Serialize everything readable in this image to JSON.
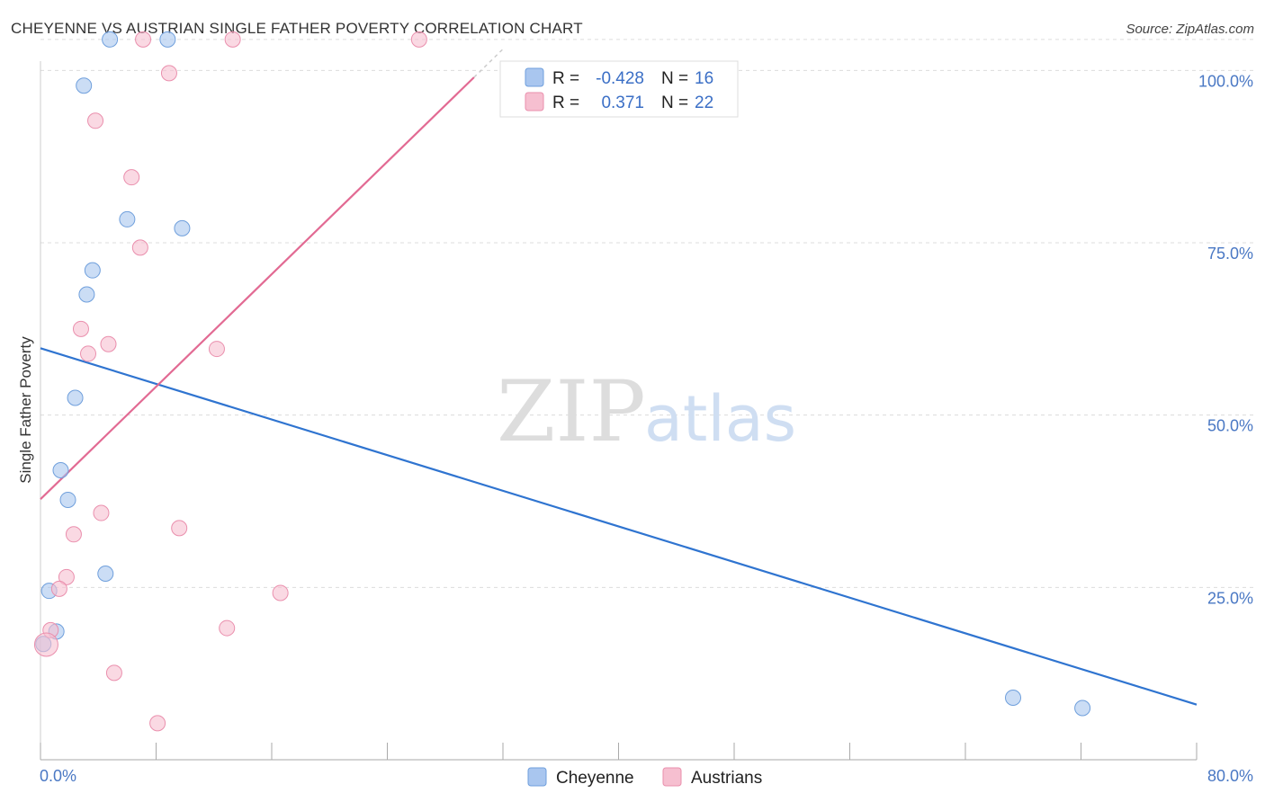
{
  "title": "CHEYENNE VS AUSTRIAN SINGLE FATHER POVERTY CORRELATION CHART",
  "source": "Source: ZipAtlas.com",
  "watermark": {
    "zip": "ZIP",
    "atlas": "atlas"
  },
  "chart_data": {
    "type": "scatter",
    "title": "CHEYENNE VS AUSTRIAN SINGLE FATHER POVERTY CORRELATION CHART",
    "xlabel": "",
    "ylabel": "Single Father Poverty",
    "xlim": [
      0,
      80
    ],
    "ylim": [
      0,
      105
    ],
    "x_tick_labels": [
      "0.0%",
      "80.0%"
    ],
    "y_ticks": [
      25,
      50,
      75,
      100
    ],
    "y_tick_labels": [
      "25.0%",
      "50.0%",
      "75.0%",
      "100.0%"
    ],
    "grid": true,
    "legend_position": "top-center",
    "stats": [
      {
        "series": "Cheyenne",
        "r_label": "R =",
        "r_value": "-0.428",
        "n_label": "N =",
        "n_value": "16"
      },
      {
        "series": "Austrians",
        "r_label": "R =",
        "r_value": "0.371",
        "n_label": "N =",
        "n_value": "22"
      }
    ],
    "series": [
      {
        "name": "Cheyenne",
        "color": "#a9c6ef",
        "stroke": "#6f9fdc",
        "line_color": "#2f74d0",
        "points": [
          {
            "x": 4.8,
            "y": 104.5
          },
          {
            "x": 8.8,
            "y": 104.5
          },
          {
            "x": 3.0,
            "y": 97.8
          },
          {
            "x": 6.0,
            "y": 78.4
          },
          {
            "x": 9.8,
            "y": 77.1
          },
          {
            "x": 3.6,
            "y": 71.0
          },
          {
            "x": 3.2,
            "y": 67.5
          },
          {
            "x": 2.4,
            "y": 52.5
          },
          {
            "x": 1.4,
            "y": 42.0
          },
          {
            "x": 1.9,
            "y": 37.7
          },
          {
            "x": 4.5,
            "y": 27.0
          },
          {
            "x": 0.6,
            "y": 24.5
          },
          {
            "x": 1.1,
            "y": 18.6
          },
          {
            "x": 0.2,
            "y": 16.8
          },
          {
            "x": 67.3,
            "y": 9.0
          },
          {
            "x": 72.1,
            "y": 7.5
          }
        ],
        "trend": {
          "x": [
            0,
            80
          ],
          "y": [
            59.7,
            8.0
          ]
        }
      },
      {
        "name": "Austrians",
        "color": "#f6bfd0",
        "stroke": "#ea8fad",
        "line_color": "#e26a93",
        "points": [
          {
            "x": 7.1,
            "y": 104.5
          },
          {
            "x": 13.3,
            "y": 104.5
          },
          {
            "x": 26.2,
            "y": 104.5
          },
          {
            "x": 8.9,
            "y": 99.6
          },
          {
            "x": 3.8,
            "y": 92.7
          },
          {
            "x": 6.3,
            "y": 84.5
          },
          {
            "x": 6.9,
            "y": 74.3
          },
          {
            "x": 2.8,
            "y": 62.5
          },
          {
            "x": 4.7,
            "y": 60.3
          },
          {
            "x": 3.3,
            "y": 58.9
          },
          {
            "x": 12.2,
            "y": 59.6
          },
          {
            "x": 4.2,
            "y": 35.8
          },
          {
            "x": 9.6,
            "y": 33.6
          },
          {
            "x": 2.3,
            "y": 32.7
          },
          {
            "x": 1.8,
            "y": 26.5
          },
          {
            "x": 1.3,
            "y": 24.8
          },
          {
            "x": 16.6,
            "y": 24.2
          },
          {
            "x": 12.9,
            "y": 19.1
          },
          {
            "x": 0.7,
            "y": 18.8
          },
          {
            "x": 0.4,
            "y": 16.7
          },
          {
            "x": 5.1,
            "y": 12.6
          },
          {
            "x": 8.1,
            "y": 5.3
          }
        ],
        "trend": {
          "x": [
            0,
            30
          ],
          "y": [
            37.8,
            99.0
          ]
        },
        "trend_dashed": {
          "x": [
            30,
            32
          ],
          "y": [
            99.0,
            103.1
          ]
        }
      }
    ]
  }
}
